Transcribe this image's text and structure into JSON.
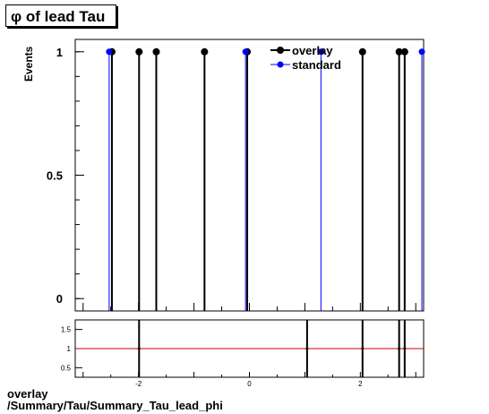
{
  "title": "φ of lead Tau",
  "footer": {
    "line1": "overlay",
    "line2": "/Summary/Tau/Summary_Tau_lead_phi"
  },
  "colors": {
    "overlay": "#000000",
    "standard": "#0000ff",
    "ratio_line": "#cc0000"
  },
  "chart_data": [
    {
      "type": "scatter",
      "ylabel": "Events",
      "xlim": [
        -3.1416,
        3.1416
      ],
      "ylim": [
        -0.05,
        1.05
      ],
      "yticks": [
        0,
        0.5,
        1
      ],
      "ytick_labels": [
        "0",
        "0.5",
        "1"
      ],
      "legend": {
        "position": "top-right",
        "entries": [
          "overlay",
          "standard"
        ]
      },
      "series": [
        {
          "name": "overlay",
          "color": "#000000",
          "x": [
            -2.48,
            -1.99,
            -1.68,
            -0.81,
            -0.04,
            2.04,
            2.7,
            2.8
          ],
          "y": [
            1,
            1,
            1,
            1,
            1,
            1,
            1,
            1
          ]
        },
        {
          "name": "standard",
          "color": "#0000ff",
          "x": [
            -2.53,
            -0.07,
            1.29,
            3.11
          ],
          "y": [
            1,
            1,
            1,
            1
          ]
        }
      ],
      "grid": false
    },
    {
      "type": "scatter",
      "xlim": [
        -3.1416,
        3.1416
      ],
      "ylim": [
        0.25,
        1.75
      ],
      "yticks": [
        0.5,
        1,
        1.5
      ],
      "ytick_labels": [
        "0.5",
        "1",
        "1.5"
      ],
      "xticks": [
        -2,
        0,
        2
      ],
      "xtick_labels": [
        "-2",
        "0",
        "2"
      ],
      "reference_line": 1,
      "vertical_bars_x": [
        -1.99,
        1.04,
        2.04,
        2.7,
        2.8
      ],
      "grid": false
    }
  ]
}
